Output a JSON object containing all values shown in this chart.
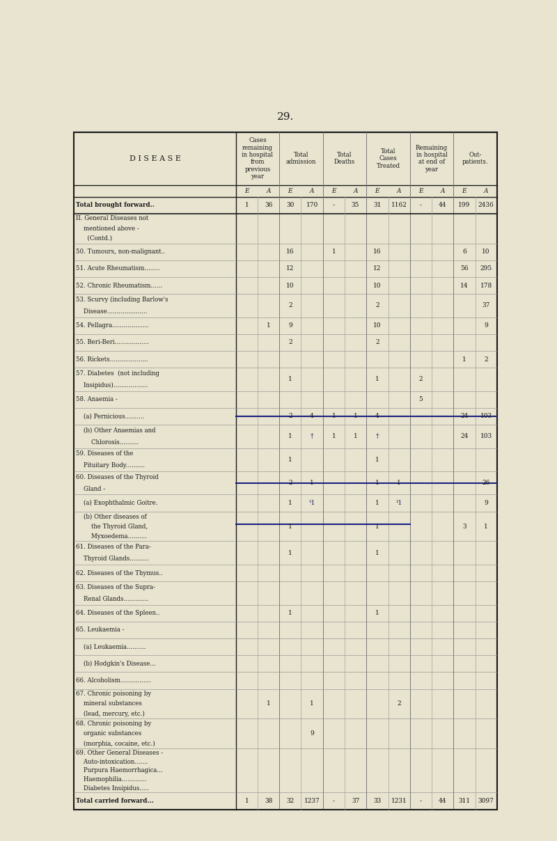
{
  "page_number": "29.",
  "bg_color": "#e8e4d0",
  "header": {
    "col1": "D I S E A S E",
    "col2_title": "Cases\nremaining\nin hospital\nfrom\nprevious\nyear",
    "col3_title": "Total\nadmission",
    "col4_title": "Total\nDeaths",
    "col5_title": "Total\nCases\nTreated",
    "col6_title": "Remaining\nin hospital\nat end of\nyear",
    "col7_title": "Out-\npatients."
  },
  "sub_header": [
    "E",
    "A",
    "E",
    "A",
    "E",
    "A",
    "E",
    "A",
    "E",
    "A",
    "E",
    "A"
  ],
  "rows": [
    {
      "label": "Total brought forward..",
      "indent": 0,
      "data": [
        "1",
        "36",
        "30",
        "170",
        "-",
        "35",
        "31",
        "1162",
        "-",
        "44",
        "199",
        "2436"
      ],
      "bold": true
    },
    {
      "label": "II. General Diseases not\n    mentioned above -\n      (Contd.)",
      "indent": 0,
      "data": [
        "",
        "",
        "",
        "",
        "",
        "",
        "",
        "",
        "",
        "",
        "",
        ""
      ]
    },
    {
      "label": "50. Tumours, non-malignant..",
      "indent": 1,
      "data": [
        "",
        "",
        "16",
        "",
        "1",
        "",
        "16",
        "",
        "",
        "",
        "6",
        "10"
      ]
    },
    {
      "label": "51. Acute Rheumatism........",
      "indent": 1,
      "data": [
        "",
        "",
        "12",
        "",
        "",
        "",
        "12",
        "",
        "",
        "",
        "56",
        "295"
      ]
    },
    {
      "label": "52. Chronic Rheumatism......",
      "indent": 1,
      "data": [
        "",
        "",
        "10",
        "",
        "",
        "",
        "10",
        "",
        "",
        "",
        "14",
        "178"
      ]
    },
    {
      "label": "53. Scurvy (including Barlow's\n    Disease.....................",
      "indent": 1,
      "data": [
        "",
        "",
        "2",
        "",
        "",
        "",
        "2",
        "",
        "",
        "",
        "",
        "37"
      ]
    },
    {
      "label": "54. Pellagra...................",
      "indent": 1,
      "data": [
        "",
        "1",
        "9",
        "",
        "",
        "",
        "10",
        "",
        "",
        "",
        "",
        "9"
      ]
    },
    {
      "label": "55. Beri-Beri..................",
      "indent": 1,
      "data": [
        "",
        "",
        "2",
        "",
        "",
        "",
        "2",
        "",
        "",
        "",
        "",
        ""
      ]
    },
    {
      "label": "56. Rickets....................",
      "indent": 1,
      "data": [
        "",
        "",
        "",
        "",
        "",
        "",
        "",
        "",
        "",
        "",
        "1",
        "2"
      ]
    },
    {
      "label": "57. Diabetes  (not including\n    Insipidus)..................",
      "indent": 1,
      "data": [
        "",
        "",
        "1",
        "",
        "",
        "",
        "1",
        "",
        "2",
        "",
        "",
        ""
      ]
    },
    {
      "label": "58. Anaemia -",
      "indent": 1,
      "data": [
        "",
        "",
        "",
        "",
        "",
        "",
        "",
        "",
        "5",
        "",
        "",
        ""
      ]
    },
    {
      "label": "    (a) Pernicious..........",
      "indent": 2,
      "data": [
        "",
        "",
        "2",
        "4",
        "1",
        "1",
        "4",
        "",
        "",
        "",
        "24",
        "103"
      ],
      "strikethrough": true
    },
    {
      "label": "    (b) Other Anaemias and\n        Chlorosis..........",
      "indent": 2,
      "data": [
        "",
        "",
        "1",
        "†",
        "1",
        "1",
        "†",
        "",
        "",
        "",
        "24",
        "103"
      ]
    },
    {
      "label": "59. Diseases of the\n    Pituitary Body..........",
      "indent": 1,
      "data": [
        "",
        "",
        "1",
        "",
        "",
        "",
        "1",
        "",
        "",
        "",
        "",
        ""
      ]
    },
    {
      "label": "60. Diseases of the Thyroid\n    Gland -",
      "indent": 1,
      "data": [
        "",
        "",
        "2",
        "1",
        "",
        "",
        "1",
        "1",
        "",
        "",
        "",
        "26"
      ],
      "strikethrough": true
    },
    {
      "label": "    (a) Exophthalmic Goitre.",
      "indent": 2,
      "data": [
        "",
        "",
        "1",
        "¹1",
        "",
        "",
        "1",
        "¹1",
        "",
        "",
        "",
        "9"
      ]
    },
    {
      "label": "    (b) Other diseases of\n        the Thyroid Gland,\n        Myxoedema..........",
      "indent": 2,
      "data": [
        "",
        "",
        "1",
        "",
        "",
        "",
        "1",
        "",
        "",
        "",
        "3",
        "1"
      ],
      "strikethrough2": true
    },
    {
      "label": "61. Diseases of the Para-\n    Thyroid Glands..........",
      "indent": 1,
      "data": [
        "",
        "",
        "1",
        "",
        "",
        "",
        "1",
        "",
        "",
        "",
        "",
        ""
      ]
    },
    {
      "label": "62. Diseases of the Thymus..",
      "indent": 1,
      "data": [
        "",
        "",
        "",
        "",
        "",
        "",
        "",
        "",
        "",
        "",
        "",
        ""
      ]
    },
    {
      "label": "63. Diseases of the Supra-\n    Renal Glands.............",
      "indent": 1,
      "data": [
        "",
        "",
        "",
        "",
        "",
        "",
        "",
        "",
        "",
        "",
        "",
        ""
      ]
    },
    {
      "label": "64. Diseases of the Spleen..",
      "indent": 1,
      "data": [
        "",
        "",
        "1",
        "",
        "",
        "",
        "1",
        "",
        "",
        "",
        "",
        ""
      ]
    },
    {
      "label": "65. Leukaemia -",
      "indent": 1,
      "data": [
        "",
        "",
        "",
        "",
        "",
        "",
        "",
        "",
        "",
        "",
        "",
        ""
      ]
    },
    {
      "label": "    (a) Leukaemia..........",
      "indent": 2,
      "data": [
        "",
        "",
        "",
        "",
        "",
        "",
        "",
        "",
        "",
        "",
        "",
        ""
      ]
    },
    {
      "label": "    (b) Hodgkin's Disease...",
      "indent": 2,
      "data": [
        "",
        "",
        "",
        "",
        "",
        "",
        "",
        "",
        "",
        "",
        "",
        ""
      ]
    },
    {
      "label": "66. Alcoholism................",
      "indent": 1,
      "data": [
        "",
        "",
        "",
        "",
        "",
        "",
        "",
        "",
        "",
        "",
        "",
        ""
      ]
    },
    {
      "label": "67. Chronic poisoning by\n    mineral substances\n    (lead, mercury, etc.)",
      "indent": 1,
      "data": [
        "",
        "1",
        "",
        "1",
        "",
        "",
        "",
        "2",
        "",
        "",
        "",
        ""
      ]
    },
    {
      "label": "68. Chronic poisoning by\n    organic substances\n    (morphia, cocaine, etc.)",
      "indent": 1,
      "data": [
        "",
        "",
        "",
        "9",
        "",
        "",
        "",
        "",
        "",
        "",
        "",
        ""
      ]
    },
    {
      "label": "69. Other General Diseases -\n    Auto-intoxication.......\n    Purpura Haemorrhagica...\n    Haemophilia.............\n    Diabetes Insipidus.....",
      "indent": 1,
      "data": [
        "",
        "",
        "",
        "",
        "",
        "",
        "",
        "",
        "",
        "",
        "",
        ""
      ]
    },
    {
      "label": "Total carried forward...",
      "indent": 0,
      "data": [
        "1",
        "38",
        "32",
        "1237",
        "-",
        "37",
        "33",
        "1231",
        "-",
        "44",
        "311",
        "3097"
      ],
      "bold": true
    }
  ]
}
